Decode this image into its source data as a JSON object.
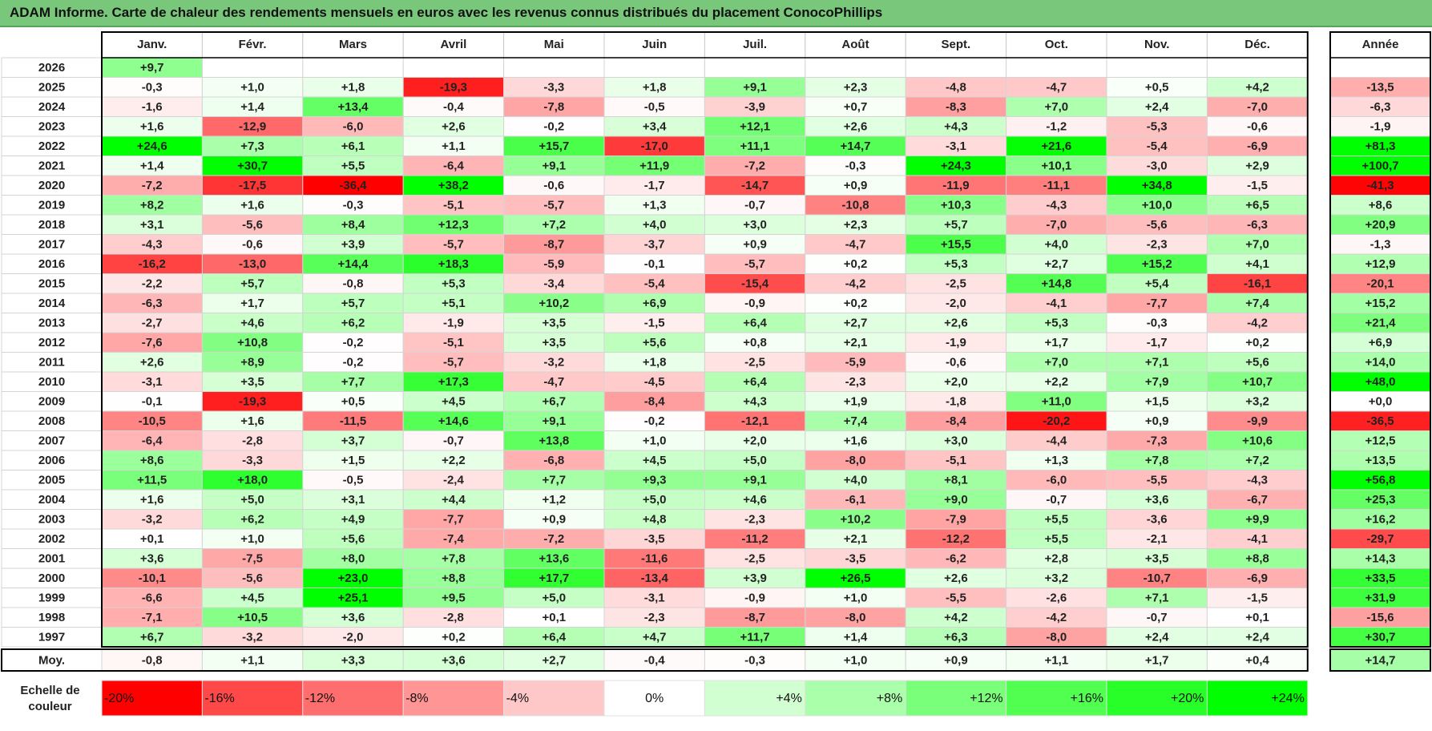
{
  "title": "ADAM Informe. Carte de chaleur des rendements mensuels en euros avec les revenus connus distribués du placement ConocoPhillips",
  "chart_data": {
    "type": "heatmap",
    "months": [
      "Janv.",
      "Févr.",
      "Mars",
      "Avril",
      "Mai",
      "Juin",
      "Juil.",
      "Août",
      "Sept.",
      "Oct.",
      "Nov.",
      "Déc."
    ],
    "year_header": "Année",
    "rows": [
      {
        "year": "2026",
        "months": [
          "+9,7",
          "",
          "",
          "",
          "",
          "",
          "",
          "",
          "",
          "",
          "",
          ""
        ],
        "annual": ""
      },
      {
        "year": "2025",
        "months": [
          "-0,3",
          "+1,0",
          "+1,8",
          "-19,3",
          "-3,3",
          "+1,8",
          "+9,1",
          "+2,3",
          "-4,8",
          "-4,7",
          "+0,5",
          "+4,2"
        ],
        "annual": "-13,5"
      },
      {
        "year": "2024",
        "months": [
          "-1,6",
          "+1,4",
          "+13,4",
          "-0,4",
          "-7,8",
          "-0,5",
          "-3,9",
          "+0,7",
          "-8,3",
          "+7,0",
          "+2,4",
          "-7,0"
        ],
        "annual": "-6,3"
      },
      {
        "year": "2023",
        "months": [
          "+1,6",
          "-12,9",
          "-6,0",
          "+2,6",
          "-0,2",
          "+3,4",
          "+12,1",
          "+2,6",
          "+4,3",
          "-1,2",
          "-5,3",
          "-0,6"
        ],
        "annual": "-1,9"
      },
      {
        "year": "2022",
        "months": [
          "+24,6",
          "+7,3",
          "+6,1",
          "+1,1",
          "+15,7",
          "-17,0",
          "+11,1",
          "+14,7",
          "-3,1",
          "+21,6",
          "-5,4",
          "-6,9"
        ],
        "annual": "+81,3"
      },
      {
        "year": "2021",
        "months": [
          "+1,4",
          "+30,7",
          "+5,5",
          "-6,4",
          "+9,1",
          "+11,9",
          "-7,2",
          "-0,3",
          "+24,3",
          "+10,1",
          "-3,0",
          "+2,9"
        ],
        "annual": "+100,7"
      },
      {
        "year": "2020",
        "months": [
          "-7,2",
          "-17,5",
          "-36,4",
          "+38,2",
          "-0,6",
          "-1,7",
          "-14,7",
          "+0,9",
          "-11,9",
          "-11,1",
          "+34,8",
          "-1,5"
        ],
        "annual": "-41,3"
      },
      {
        "year": "2019",
        "months": [
          "+8,2",
          "+1,6",
          "-0,3",
          "-5,1",
          "-5,7",
          "+1,3",
          "-0,7",
          "-10,8",
          "+10,3",
          "-4,3",
          "+10,0",
          "+6,5"
        ],
        "annual": "+8,6"
      },
      {
        "year": "2018",
        "months": [
          "+3,1",
          "-5,6",
          "+8,4",
          "+12,3",
          "+7,2",
          "+4,0",
          "+3,0",
          "+2,3",
          "+5,7",
          "-7,0",
          "-5,6",
          "-6,3"
        ],
        "annual": "+20,9"
      },
      {
        "year": "2017",
        "months": [
          "-4,3",
          "-0,6",
          "+3,9",
          "-5,7",
          "-8,7",
          "-3,7",
          "+0,9",
          "-4,7",
          "+15,5",
          "+4,0",
          "-2,3",
          "+7,0"
        ],
        "annual": "-1,3"
      },
      {
        "year": "2016",
        "months": [
          "-16,2",
          "-13,0",
          "+14,4",
          "+18,3",
          "-5,9",
          "-0,1",
          "-5,7",
          "+0,2",
          "+5,3",
          "+2,7",
          "+15,2",
          "+4,1"
        ],
        "annual": "+12,9"
      },
      {
        "year": "2015",
        "months": [
          "-2,2",
          "+5,7",
          "-0,8",
          "+5,3",
          "-3,4",
          "-5,4",
          "-15,4",
          "-4,2",
          "-2,5",
          "+14,8",
          "+5,4",
          "-16,1"
        ],
        "annual": "-20,1"
      },
      {
        "year": "2014",
        "months": [
          "-6,3",
          "+1,7",
          "+5,7",
          "+5,1",
          "+10,2",
          "+6,9",
          "-0,9",
          "+0,2",
          "-2,0",
          "-4,1",
          "-7,7",
          "+7,4"
        ],
        "annual": "+15,2"
      },
      {
        "year": "2013",
        "months": [
          "-2,7",
          "+4,6",
          "+6,2",
          "-1,9",
          "+3,5",
          "-1,5",
          "+6,4",
          "+2,7",
          "+2,6",
          "+5,3",
          "-0,3",
          "-4,2"
        ],
        "annual": "+21,4"
      },
      {
        "year": "2012",
        "months": [
          "-7,6",
          "+10,8",
          "-0,2",
          "-5,1",
          "+3,5",
          "+5,6",
          "+0,8",
          "+2,1",
          "-1,9",
          "+1,7",
          "-1,7",
          "+0,2"
        ],
        "annual": "+6,9"
      },
      {
        "year": "2011",
        "months": [
          "+2,6",
          "+8,9",
          "-0,2",
          "-5,7",
          "-3,2",
          "+1,8",
          "-2,5",
          "-5,9",
          "-0,6",
          "+7,0",
          "+7,1",
          "+5,6"
        ],
        "annual": "+14,0"
      },
      {
        "year": "2010",
        "months": [
          "-3,1",
          "+3,5",
          "+7,7",
          "+17,3",
          "-4,7",
          "-4,5",
          "+6,4",
          "-2,3",
          "+2,0",
          "+2,2",
          "+7,9",
          "+10,7"
        ],
        "annual": "+48,0"
      },
      {
        "year": "2009",
        "months": [
          "-0,1",
          "-19,3",
          "+0,5",
          "+4,5",
          "+6,7",
          "-8,4",
          "+4,3",
          "+1,9",
          "-1,8",
          "+11,0",
          "+1,5",
          "+3,2"
        ],
        "annual": "+0,0"
      },
      {
        "year": "2008",
        "months": [
          "-10,5",
          "+1,6",
          "-11,5",
          "+14,6",
          "+9,1",
          "-0,2",
          "-12,1",
          "+7,4",
          "-8,4",
          "-20,2",
          "+0,9",
          "-9,9"
        ],
        "annual": "-36,5"
      },
      {
        "year": "2007",
        "months": [
          "-6,4",
          "-2,8",
          "+3,7",
          "-0,7",
          "+13,8",
          "+1,0",
          "+2,0",
          "+1,6",
          "+3,0",
          "-4,4",
          "-7,3",
          "+10,6"
        ],
        "annual": "+12,5"
      },
      {
        "year": "2006",
        "months": [
          "+8,6",
          "-3,3",
          "+1,5",
          "+2,2",
          "-6,8",
          "+4,5",
          "+5,0",
          "-8,0",
          "-5,1",
          "+1,3",
          "+7,8",
          "+7,2"
        ],
        "annual": "+13,5"
      },
      {
        "year": "2005",
        "months": [
          "+11,5",
          "+18,0",
          "-0,5",
          "-2,4",
          "+7,7",
          "+9,3",
          "+9,1",
          "+4,0",
          "+8,1",
          "-6,0",
          "-5,5",
          "-4,3"
        ],
        "annual": "+56,8"
      },
      {
        "year": "2004",
        "months": [
          "+1,6",
          "+5,0",
          "+3,1",
          "+4,4",
          "+1,2",
          "+5,0",
          "+4,6",
          "-6,1",
          "+9,0",
          "-0,7",
          "+3,6",
          "-6,7"
        ],
        "annual": "+25,3"
      },
      {
        "year": "2003",
        "months": [
          "-3,2",
          "+6,2",
          "+4,9",
          "-7,7",
          "+0,9",
          "+4,8",
          "-2,3",
          "+10,2",
          "-7,9",
          "+5,5",
          "-3,6",
          "+9,9"
        ],
        "annual": "+16,2"
      },
      {
        "year": "2002",
        "months": [
          "+0,1",
          "+1,0",
          "+5,6",
          "-7,4",
          "-7,2",
          "-3,5",
          "-11,2",
          "+2,1",
          "-12,2",
          "+5,5",
          "-2,1",
          "-4,1"
        ],
        "annual": "-29,7"
      },
      {
        "year": "2001",
        "months": [
          "+3,6",
          "-7,5",
          "+8,0",
          "+7,8",
          "+13,6",
          "-11,6",
          "-2,5",
          "-3,5",
          "-6,2",
          "+2,8",
          "+3,5",
          "+8,8"
        ],
        "annual": "+14,3"
      },
      {
        "year": "2000",
        "months": [
          "-10,1",
          "-5,6",
          "+23,0",
          "+8,8",
          "+17,7",
          "-13,4",
          "+3,9",
          "+26,5",
          "+2,6",
          "+3,2",
          "-10,7",
          "-6,9"
        ],
        "annual": "+33,5"
      },
      {
        "year": "1999",
        "months": [
          "-6,6",
          "+4,5",
          "+25,1",
          "+9,5",
          "+5,0",
          "-3,1",
          "-0,9",
          "+1,0",
          "-5,5",
          "-2,6",
          "+7,1",
          "-1,5"
        ],
        "annual": "+31,9"
      },
      {
        "year": "1998",
        "months": [
          "-7,1",
          "+10,5",
          "+3,6",
          "-2,8",
          "+0,1",
          "-2,3",
          "-8,7",
          "-8,0",
          "+4,2",
          "-4,2",
          "-0,7",
          "+0,1"
        ],
        "annual": "-15,6"
      },
      {
        "year": "1997",
        "months": [
          "+6,7",
          "-3,2",
          "-2,0",
          "+0,2",
          "+6,4",
          "+4,7",
          "+11,7",
          "+1,4",
          "+6,3",
          "-8,0",
          "+2,4",
          "+2,4"
        ],
        "annual": "+30,7"
      }
    ],
    "average": {
      "label": "Moy.",
      "months": [
        "-0,8",
        "+1,1",
        "+3,3",
        "+3,6",
        "+2,7",
        "-0,4",
        "-0,3",
        "+1,0",
        "+0,9",
        "+1,1",
        "+1,7",
        "+0,4"
      ],
      "annual": "+14,7"
    },
    "scale": {
      "label_line1": "Echelle de",
      "label_line2": "couleur",
      "items": [
        "-20%",
        "-16%",
        "-12%",
        "-8%",
        "-4%",
        "0%",
        "+4%",
        "+8%",
        "+12%",
        "+16%",
        "+20%",
        "+24%"
      ],
      "colors": [
        "#ff0000",
        "#ff4848",
        "#ff6e6e",
        "#ff9595",
        "#ffc8c8",
        "#ffffff",
        "#d2ffd2",
        "#aaffaa",
        "#7aff7a",
        "#50ff50",
        "#28ff28",
        "#00ff00"
      ]
    },
    "colors": {
      "title_bg": "#78c77a",
      "negative": "#ff0000",
      "positive": "#00ff00",
      "neutral": "#ffffff"
    }
  }
}
